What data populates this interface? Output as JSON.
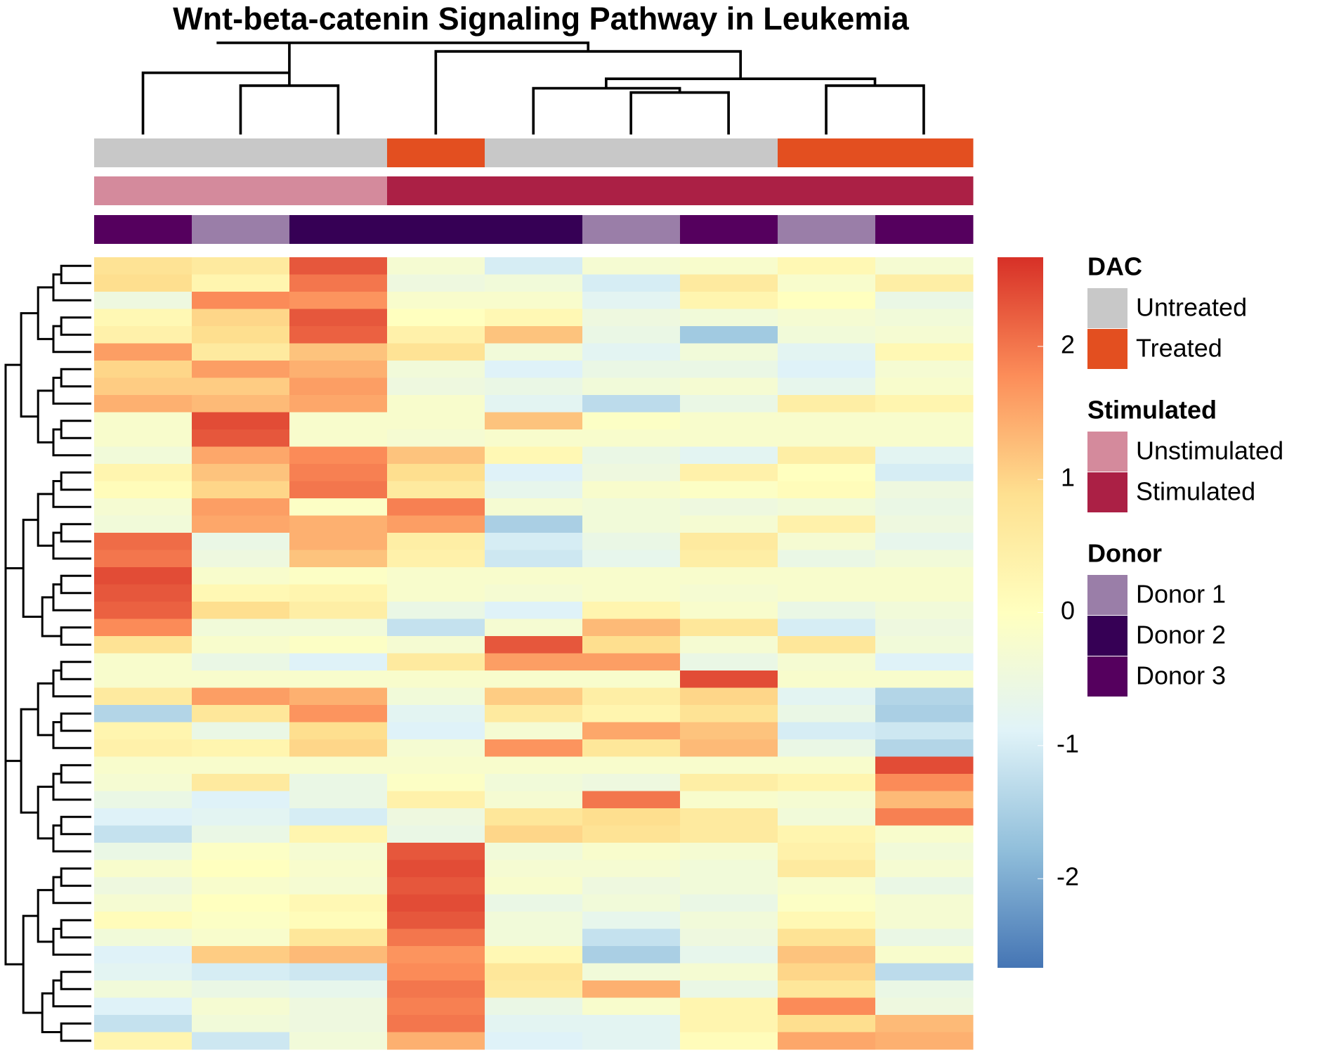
{
  "chart_data": {
    "type": "heatmap",
    "title": "Wnt-beta-catenin Signaling Pathway in Leukemia",
    "colorscale": [
      "#4575b4",
      "#91bfdb",
      "#e0f3f8",
      "#ffffbf",
      "#fee090",
      "#fc8d59",
      "#d73027"
    ],
    "zlim": [
      -2.67,
      2.67
    ],
    "zticks": [
      -2,
      -1,
      0,
      1,
      2
    ],
    "annotations": [
      {
        "name": "DAC",
        "levels": [
          {
            "label": "Untreated",
            "color": "#c8c8c8"
          },
          {
            "label": "Treated",
            "color": "#e34f20"
          }
        ],
        "columns": [
          0,
          0,
          0,
          1,
          0,
          0,
          0,
          1,
          1
        ]
      },
      {
        "name": "Stimulated",
        "levels": [
          {
            "label": "Unstimulated",
            "color": "#d48a9c"
          },
          {
            "label": "Stimulated",
            "color": "#ab2045"
          }
        ],
        "columns": [
          0,
          0,
          0,
          1,
          1,
          1,
          1,
          1,
          1
        ]
      },
      {
        "name": "Donor",
        "levels": [
          {
            "label": "Donor 1",
            "color": "#9a7ea8"
          },
          {
            "label": "Donor 2",
            "color": "#360055"
          },
          {
            "label": "Donor 3",
            "color": "#55005e"
          }
        ],
        "columns": [
          2,
          0,
          1,
          1,
          1,
          0,
          2,
          0,
          2
        ]
      }
    ],
    "values": [
      [
        0.8,
        0.6,
        2.3,
        -0.3,
        -1.0,
        -0.3,
        -0.2,
        0.2,
        -0.3
      ],
      [
        0.9,
        0.3,
        2.0,
        -0.5,
        -0.4,
        -1.0,
        0.6,
        -0.2,
        0.5
      ],
      [
        -0.5,
        1.8,
        1.7,
        -0.2,
        -0.2,
        -0.8,
        0.3,
        0.0,
        -0.6
      ],
      [
        0.2,
        1.0,
        2.3,
        0.0,
        0.2,
        -0.5,
        -0.4,
        -0.3,
        -0.4
      ],
      [
        0.4,
        0.9,
        2.2,
        0.4,
        1.2,
        -0.6,
        -1.6,
        -0.4,
        -0.3
      ],
      [
        1.6,
        0.6,
        1.2,
        0.8,
        -0.4,
        -0.8,
        -0.4,
        -0.8,
        0.2
      ],
      [
        1.0,
        1.6,
        1.4,
        -0.4,
        -0.9,
        -0.6,
        -0.6,
        -0.9,
        -0.3
      ],
      [
        1.1,
        1.1,
        1.6,
        -0.5,
        -0.6,
        -0.4,
        -0.3,
        -0.7,
        -0.2
      ],
      [
        1.4,
        1.3,
        1.5,
        -0.2,
        -0.8,
        -1.3,
        -0.6,
        0.5,
        0.3
      ],
      [
        -0.2,
        2.4,
        -0.2,
        -0.2,
        1.2,
        -0.1,
        -0.2,
        -0.2,
        -0.2
      ],
      [
        -0.2,
        2.3,
        -0.2,
        -0.3,
        -0.2,
        -0.2,
        -0.2,
        -0.2,
        -0.2
      ],
      [
        -0.4,
        1.5,
        1.8,
        1.2,
        0.2,
        -0.6,
        -0.8,
        0.5,
        -0.8
      ],
      [
        0.3,
        1.2,
        1.9,
        0.9,
        -0.9,
        -0.5,
        0.4,
        0.0,
        -1.0
      ],
      [
        0.1,
        1.0,
        2.0,
        0.6,
        -0.7,
        -0.2,
        -0.1,
        0.1,
        -0.5
      ],
      [
        -0.3,
        1.6,
        -0.1,
        1.9,
        -0.3,
        -0.4,
        -0.5,
        -0.4,
        -0.6
      ],
      [
        -0.4,
        1.5,
        1.4,
        1.6,
        -1.5,
        -0.4,
        -0.3,
        0.4,
        -0.5
      ],
      [
        2.1,
        -0.6,
        1.4,
        0.5,
        -1.0,
        -0.6,
        0.6,
        -0.3,
        -0.7
      ],
      [
        2.0,
        -0.5,
        1.2,
        0.4,
        -1.1,
        -0.7,
        0.5,
        -0.6,
        -0.4
      ],
      [
        2.4,
        -0.2,
        -0.1,
        -0.2,
        -0.2,
        -0.2,
        -0.2,
        -0.2,
        -0.2
      ],
      [
        2.3,
        0.2,
        0.3,
        -0.2,
        -0.3,
        -0.2,
        -0.3,
        -0.2,
        -0.2
      ],
      [
        2.2,
        0.9,
        0.5,
        -0.6,
        -0.9,
        0.3,
        -0.2,
        -0.6,
        -0.4
      ],
      [
        1.8,
        -0.4,
        -0.4,
        -1.2,
        -0.3,
        1.3,
        0.7,
        -1.0,
        -0.5
      ],
      [
        0.8,
        -0.2,
        -0.1,
        -0.3,
        2.3,
        0.9,
        -0.3,
        0.7,
        -0.4
      ],
      [
        -0.2,
        -0.6,
        -0.9,
        0.6,
        1.6,
        1.6,
        -0.6,
        -0.3,
        -0.9
      ],
      [
        -0.2,
        -0.2,
        -0.2,
        -0.2,
        -0.2,
        -0.2,
        2.4,
        -0.2,
        -0.2
      ],
      [
        0.6,
        1.6,
        1.4,
        -0.4,
        1.1,
        0.5,
        1.0,
        -0.8,
        -1.4
      ],
      [
        -1.4,
        0.7,
        1.7,
        -0.8,
        0.6,
        0.3,
        0.8,
        -0.6,
        -1.5
      ],
      [
        0.3,
        -0.6,
        0.9,
        -0.9,
        -0.3,
        1.5,
        1.2,
        -1.0,
        -1.1
      ],
      [
        0.4,
        0.3,
        1.0,
        -0.3,
        1.7,
        0.7,
        1.3,
        -0.6,
        -1.4
      ],
      [
        -0.2,
        -0.2,
        -0.2,
        -0.2,
        -0.2,
        -0.2,
        -0.2,
        -0.2,
        2.4
      ],
      [
        -0.3,
        0.6,
        -0.6,
        -0.1,
        -0.4,
        -0.5,
        0.5,
        0.3,
        1.8
      ],
      [
        -0.6,
        -0.9,
        -0.6,
        0.4,
        -0.3,
        2.0,
        -0.2,
        -0.3,
        1.3
      ],
      [
        -0.9,
        -0.8,
        -1.0,
        -0.5,
        0.7,
        0.9,
        0.6,
        -0.4,
        1.9
      ],
      [
        -1.2,
        -0.6,
        0.3,
        -0.6,
        1.0,
        0.8,
        0.6,
        0.3,
        -0.2
      ],
      [
        -0.6,
        -0.1,
        -0.3,
        2.3,
        -0.4,
        -0.2,
        -0.3,
        0.4,
        -0.4
      ],
      [
        -0.2,
        0.0,
        -0.2,
        2.4,
        -0.3,
        -0.3,
        -0.4,
        0.6,
        -0.3
      ],
      [
        -0.5,
        -0.2,
        -0.3,
        2.3,
        -0.2,
        -0.5,
        -0.4,
        -0.2,
        -0.6
      ],
      [
        -0.3,
        0.0,
        0.2,
        2.4,
        -0.6,
        -0.4,
        -0.6,
        -0.1,
        -0.3
      ],
      [
        0.1,
        -0.1,
        0.1,
        2.3,
        -0.4,
        -0.7,
        -0.4,
        0.2,
        -0.3
      ],
      [
        -0.4,
        -0.2,
        0.7,
        2.0,
        -0.4,
        -1.2,
        -0.5,
        0.8,
        -0.6
      ],
      [
        -0.9,
        1.1,
        1.3,
        1.7,
        0.2,
        -1.5,
        -0.7,
        1.2,
        -0.2
      ],
      [
        -0.8,
        -1.0,
        -1.1,
        1.8,
        0.7,
        -0.4,
        -0.3,
        1.0,
        -1.3
      ],
      [
        -0.4,
        -0.6,
        -0.7,
        2.0,
        0.6,
        1.4,
        -0.6,
        0.7,
        -0.6
      ],
      [
        -0.9,
        -0.3,
        -0.5,
        1.9,
        -0.6,
        -0.2,
        0.3,
        1.8,
        -0.5
      ],
      [
        -1.2,
        -0.4,
        -0.5,
        2.0,
        -0.8,
        -0.8,
        0.3,
        0.9,
        1.3
      ],
      [
        0.3,
        -1.1,
        -0.4,
        1.4,
        -0.9,
        -0.8,
        0.1,
        1.5,
        1.4
      ]
    ]
  }
}
